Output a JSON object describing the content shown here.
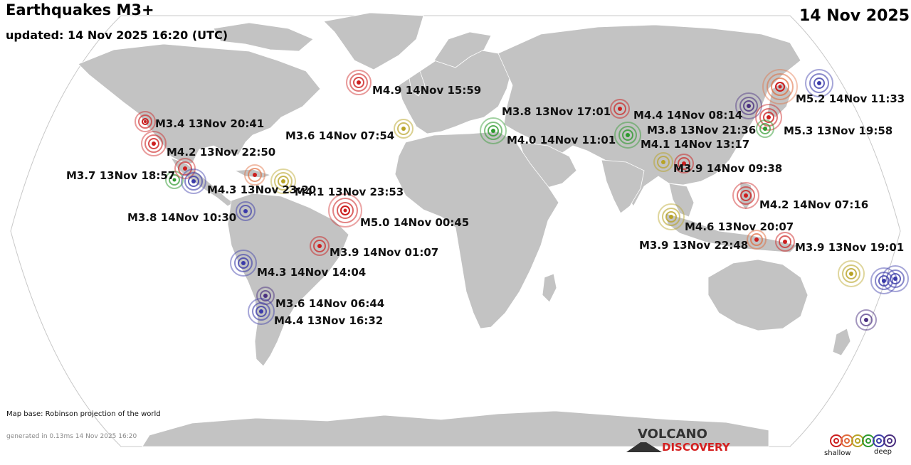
{
  "title": "Earthquakes M3+",
  "updated": "updated: 14 Nov 2025 16:20 (UTC)",
  "date": "14 Nov 2025",
  "map_base": "Map base: Robinson projection of the world",
  "generated": "generated in 0.13ms 14 Nov 2025 16:20",
  "logo": {
    "line1": "VOLCANO",
    "line2": "DISCOVERY"
  },
  "legend": {
    "shallow": "shallow",
    "deep": "deep"
  },
  "colors": {
    "land": "#c3c3c3",
    "ocean": "#ffffff",
    "depth_scale": [
      "#cc1f1f",
      "#e06a3a",
      "#b8a326",
      "#2e9a2e",
      "#3a3aa8",
      "#4a2f80"
    ]
  },
  "quakes": [
    {
      "label": "M4.9 14Nov 15:59",
      "mag": 4.9,
      "depth_class": "shallow"
    },
    {
      "label": "M3.4 13Nov 20:41",
      "mag": 3.4,
      "depth_class": "shallow"
    },
    {
      "label": "M4.2 13Nov 22:50",
      "mag": 4.2,
      "depth_class": "shallow"
    },
    {
      "label": "M3.7 13Nov 18:57",
      "mag": 3.7,
      "depth_class": "intermediate"
    },
    {
      "label": "M4.3 13Nov 23:20",
      "mag": 4.3,
      "depth_class": "deep"
    },
    {
      "label": "M4.1 13Nov 23:53",
      "mag": 4.1,
      "depth_class": "mid"
    },
    {
      "label": "M5.0 14Nov 00:45",
      "mag": 5.0,
      "depth_class": "shallow"
    },
    {
      "label": "M3.8 14Nov 10:30",
      "mag": 3.8,
      "depth_class": "deep"
    },
    {
      "label": "M3.9 14Nov 01:07",
      "mag": 3.9,
      "depth_class": "shallow"
    },
    {
      "label": "M4.3 14Nov 14:04",
      "mag": 4.3,
      "depth_class": "deep"
    },
    {
      "label": "M3.6 14Nov 06:44",
      "mag": 3.6,
      "depth_class": "very-deep"
    },
    {
      "label": "M4.4 13Nov 16:32",
      "mag": 4.4,
      "depth_class": "deep"
    },
    {
      "label": "M3.6 14Nov 07:54",
      "mag": 3.6,
      "depth_class": "mid"
    },
    {
      "label": "M4.0 14Nov 11:01",
      "mag": 4.0,
      "depth_class": "intermediate"
    },
    {
      "label": "M3.8 13Nov 17:01",
      "mag": 3.8,
      "depth_class": "shallow"
    },
    {
      "label": "M4.4 14Nov 08:14",
      "mag": 4.4,
      "depth_class": "very-deep"
    },
    {
      "label": "M3.8 13Nov 21:36",
      "mag": 3.8,
      "depth_class": "intermediate"
    },
    {
      "label": "M4.1 14Nov 13:17",
      "mag": 4.1,
      "depth_class": "intermediate"
    },
    {
      "label": "M5.2 14Nov 11:33",
      "mag": 5.2,
      "depth_class": "deep"
    },
    {
      "label": "M5.3 13Nov 19:58",
      "mag": 5.3,
      "depth_class": "shallow-mid"
    },
    {
      "label": "M3.9 14Nov 09:38",
      "mag": 3.9,
      "depth_class": "shallow"
    },
    {
      "label": "M4.2 14Nov 07:16",
      "mag": 4.2,
      "depth_class": "shallow"
    },
    {
      "label": "M4.6 13Nov 20:07",
      "mag": 4.6,
      "depth_class": "mid"
    },
    {
      "label": "M3.9 13Nov 22:48",
      "mag": 3.9,
      "depth_class": "shallow-mid"
    },
    {
      "label": "M3.9 13Nov 19:01",
      "mag": 3.9,
      "depth_class": "shallow"
    }
  ]
}
